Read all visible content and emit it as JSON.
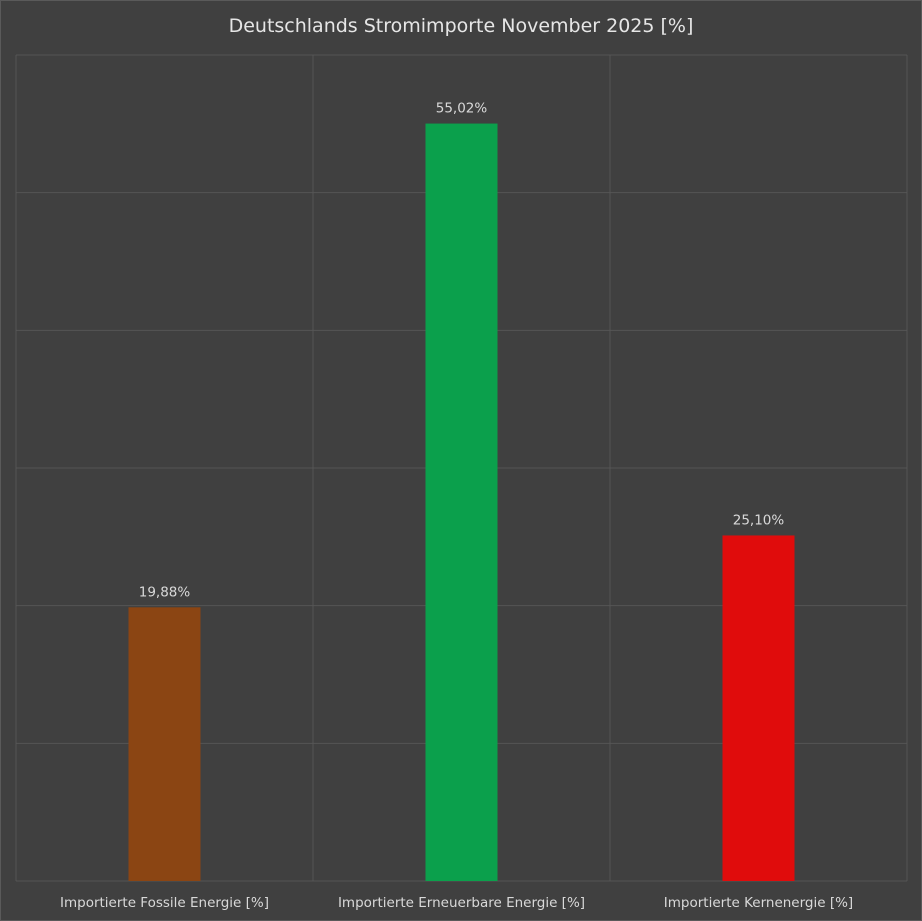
{
  "chart_data": {
    "type": "bar",
    "title": "Deutschlands Stromimporte November 2025 [%]",
    "categories": [
      "Importierte Fossile Energie [%]",
      "Importierte Erneuerbare Energie [%]",
      "Importierte Kernenergie [%]"
    ],
    "values": [
      19.88,
      55.02,
      25.1
    ],
    "value_labels": [
      "19,88%",
      "55,02%",
      "25,10%"
    ],
    "colors": [
      "#8b4513",
      "#0ba04c",
      "#e00c0c"
    ],
    "ylim": [
      0,
      60
    ],
    "grid": true,
    "legend": "none",
    "xlabel": "",
    "ylabel": ""
  },
  "theme": {
    "background": "#404040",
    "grid_color": "#555555",
    "text_color": "#d9d9d9"
  }
}
